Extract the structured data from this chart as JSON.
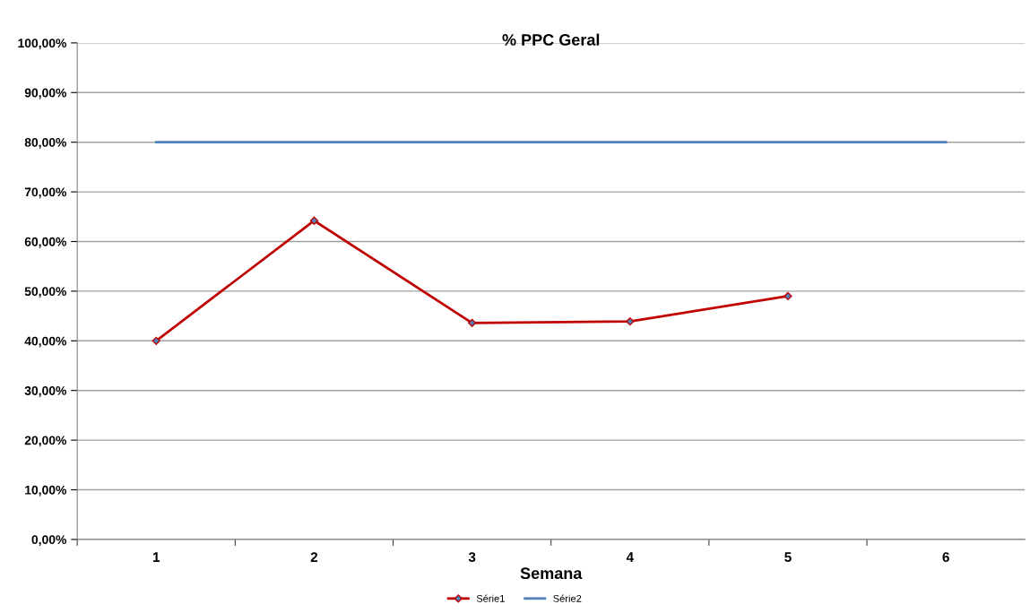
{
  "chart_data": {
    "type": "line",
    "title": "% PPC Geral",
    "xlabel": "Semana",
    "categories": [
      "1",
      "2",
      "3",
      "4",
      "5",
      "6"
    ],
    "series": [
      {
        "name": "Série1",
        "color": "#c00000",
        "marker": "diamond",
        "values": [
          40.0,
          64.2,
          43.6,
          43.9,
          49.0,
          null
        ]
      },
      {
        "name": "Série2",
        "color": "#4f81bd",
        "marker": "none",
        "values": [
          80,
          80,
          80,
          80,
          80,
          80
        ]
      }
    ],
    "ylim": [
      0,
      100
    ],
    "yticks": [
      {
        "value": 0,
        "label": "0,00%"
      },
      {
        "value": 10,
        "label": "10,00%"
      },
      {
        "value": 20,
        "label": "20,00%"
      },
      {
        "value": 30,
        "label": "30,00%"
      },
      {
        "value": 40,
        "label": "40,00%"
      },
      {
        "value": 50,
        "label": "50,00%"
      },
      {
        "value": 60,
        "label": "60,00%"
      },
      {
        "value": 70,
        "label": "70,00%"
      },
      {
        "value": 80,
        "label": "80,00%"
      },
      {
        "value": 90,
        "label": "90,00%"
      },
      {
        "value": 100,
        "label": "100,00%"
      }
    ],
    "grid": "y",
    "legend": "bottom",
    "line_style": "solid"
  }
}
